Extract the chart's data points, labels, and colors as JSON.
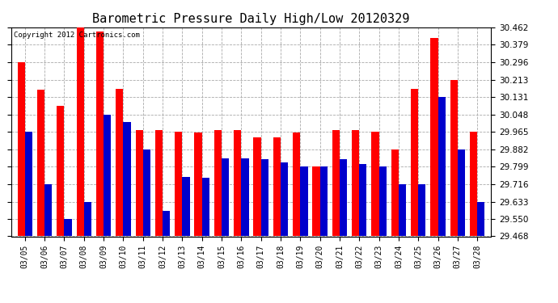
{
  "title": "Barometric Pressure Daily High/Low 20120329",
  "copyright": "Copyright 2012 Cartronics.com",
  "dates": [
    "03/05",
    "03/06",
    "03/07",
    "03/08",
    "03/09",
    "03/10",
    "03/11",
    "03/12",
    "03/13",
    "03/14",
    "03/15",
    "03/16",
    "03/17",
    "03/18",
    "03/19",
    "03/20",
    "03/21",
    "03/22",
    "03/23",
    "03/24",
    "03/25",
    "03/26",
    "03/27",
    "03/28"
  ],
  "highs": [
    30.296,
    30.165,
    30.09,
    30.462,
    30.44,
    30.17,
    29.975,
    29.975,
    29.965,
    29.96,
    29.975,
    29.975,
    29.94,
    29.94,
    29.96,
    29.8,
    29.975,
    29.975,
    29.965,
    29.882,
    30.17,
    30.41,
    30.213,
    29.965
  ],
  "lows": [
    29.965,
    29.716,
    29.55,
    29.633,
    30.048,
    30.01,
    29.882,
    29.59,
    29.75,
    29.745,
    29.84,
    29.84,
    29.833,
    29.82,
    29.8,
    29.8,
    29.833,
    29.81,
    29.8,
    29.716,
    29.716,
    30.131,
    29.882,
    29.633
  ],
  "high_color": "#ff0000",
  "low_color": "#0000cc",
  "bg_color": "#ffffff",
  "grid_color": "#aaaaaa",
  "ylim": [
    29.468,
    30.462
  ],
  "yticks": [
    29.468,
    29.55,
    29.633,
    29.716,
    29.799,
    29.882,
    29.965,
    30.048,
    30.131,
    30.213,
    30.296,
    30.379,
    30.462
  ],
  "bar_width": 0.38,
  "title_fontsize": 11,
  "copyright_fontsize": 6.5,
  "ytick_fontsize": 7.5,
  "xtick_fontsize": 7
}
